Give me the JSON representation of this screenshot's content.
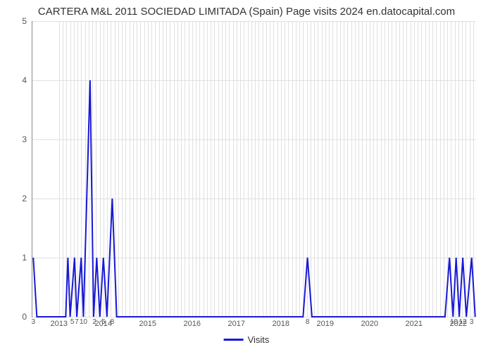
{
  "chart": {
    "type": "line",
    "title": "CARTERA M&L 2011 SOCIEDAD LIMITADA (Spain) Page visits 2024 en.datocapital.com",
    "title_fontsize": 15,
    "background_color": "#ffffff",
    "grid_color": "#e0e0e0",
    "axis_color": "#888888",
    "line_color": "#1919d6",
    "line_width": 2,
    "ylim": [
      0,
      5
    ],
    "ytick_step": 1,
    "y_ticks": [
      0,
      1,
      2,
      3,
      4,
      5
    ],
    "x_start": 2012.4,
    "x_end": 2022.4,
    "x_year_ticks": [
      2013,
      2014,
      2015,
      2016,
      2017,
      2018,
      2019,
      2020,
      2021,
      2022
    ],
    "point_labels": [
      {
        "x": 2012.42,
        "label": "3"
      },
      {
        "x": 2013.3,
        "label": "5"
      },
      {
        "x": 2013.4,
        "label": "7"
      },
      {
        "x": 2013.55,
        "label": "10"
      },
      {
        "x": 2013.8,
        "label": "2"
      },
      {
        "x": 2014.0,
        "label": "5"
      },
      {
        "x": 2014.2,
        "label": "8"
      },
      {
        "x": 2018.6,
        "label": "8"
      },
      {
        "x": 2021.9,
        "label": "10"
      },
      {
        "x": 2022.1,
        "label": "12"
      },
      {
        "x": 2022.3,
        "label": "3"
      }
    ],
    "series": {
      "name": "Visits",
      "points": [
        {
          "x": 2012.42,
          "y": 1
        },
        {
          "x": 2012.5,
          "y": 0
        },
        {
          "x": 2013.15,
          "y": 0
        },
        {
          "x": 2013.2,
          "y": 1
        },
        {
          "x": 2013.25,
          "y": 0
        },
        {
          "x": 2013.35,
          "y": 1
        },
        {
          "x": 2013.4,
          "y": 0
        },
        {
          "x": 2013.5,
          "y": 1
        },
        {
          "x": 2013.55,
          "y": 0
        },
        {
          "x": 2013.7,
          "y": 4
        },
        {
          "x": 2013.78,
          "y": 0
        },
        {
          "x": 2013.85,
          "y": 1
        },
        {
          "x": 2013.92,
          "y": 0
        },
        {
          "x": 2014.0,
          "y": 1
        },
        {
          "x": 2014.08,
          "y": 0
        },
        {
          "x": 2014.2,
          "y": 2
        },
        {
          "x": 2014.3,
          "y": 0
        },
        {
          "x": 2018.5,
          "y": 0
        },
        {
          "x": 2018.6,
          "y": 1
        },
        {
          "x": 2018.7,
          "y": 0
        },
        {
          "x": 2021.7,
          "y": 0
        },
        {
          "x": 2021.8,
          "y": 1
        },
        {
          "x": 2021.88,
          "y": 0
        },
        {
          "x": 2021.95,
          "y": 1
        },
        {
          "x": 2022.02,
          "y": 0
        },
        {
          "x": 2022.1,
          "y": 1
        },
        {
          "x": 2022.18,
          "y": 0
        },
        {
          "x": 2022.3,
          "y": 1
        },
        {
          "x": 2022.38,
          "y": 0
        }
      ]
    },
    "legend_label": "Visits"
  }
}
